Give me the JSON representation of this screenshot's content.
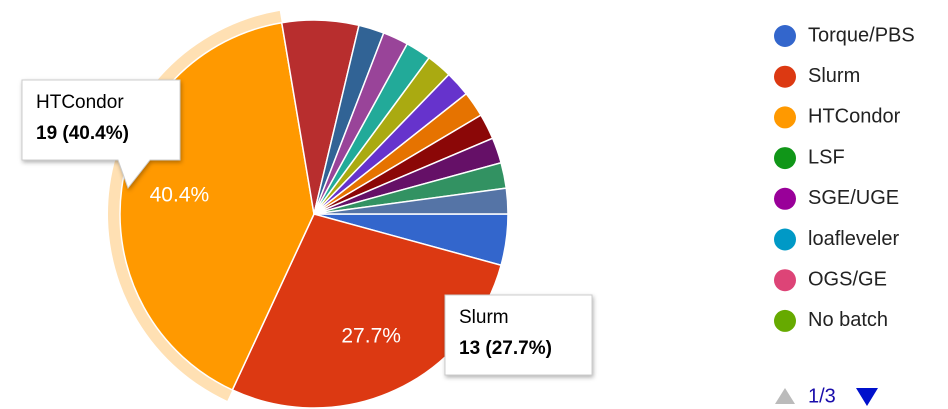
{
  "chart_data": {
    "type": "pie",
    "start_angle": 90,
    "values": [
      2,
      13,
      19,
      3,
      1,
      1,
      1,
      1,
      1,
      1,
      1,
      1,
      1,
      1
    ],
    "value_labels": [
      null,
      "27.7%",
      "40.4%",
      null,
      null,
      null,
      null,
      null,
      null,
      null,
      null,
      null,
      null,
      null
    ],
    "colors": [
      "#3366cc",
      "#dc3912",
      "#ff9900",
      "#b82e2e",
      "#316395",
      "#994499",
      "#22aa99",
      "#aaaa11",
      "#6633cc",
      "#e67300",
      "#8b0707",
      "#651067",
      "#329262",
      "#5574a6"
    ],
    "highlight": 2,
    "legend": [
      {
        "name": "Torque/PBS",
        "color": "#3366cc"
      },
      {
        "name": "Slurm",
        "color": "#dc3912"
      },
      {
        "name": "HTCondor",
        "color": "#ff9900"
      },
      {
        "name": "LSF",
        "color": "#109618"
      },
      {
        "name": "SGE/UGE",
        "color": "#990099"
      },
      {
        "name": "loafleveler",
        "color": "#0099c6"
      },
      {
        "name": "OGS/GE",
        "color": "#dd4477"
      },
      {
        "name": "No batch",
        "color": "#66aa00"
      }
    ],
    "legend_page": "1/3",
    "tooltips": [
      {
        "title": "HTCondor",
        "text": "19 (40.4%)"
      },
      {
        "title": "Slurm",
        "text": "13 (27.7%)"
      }
    ]
  }
}
